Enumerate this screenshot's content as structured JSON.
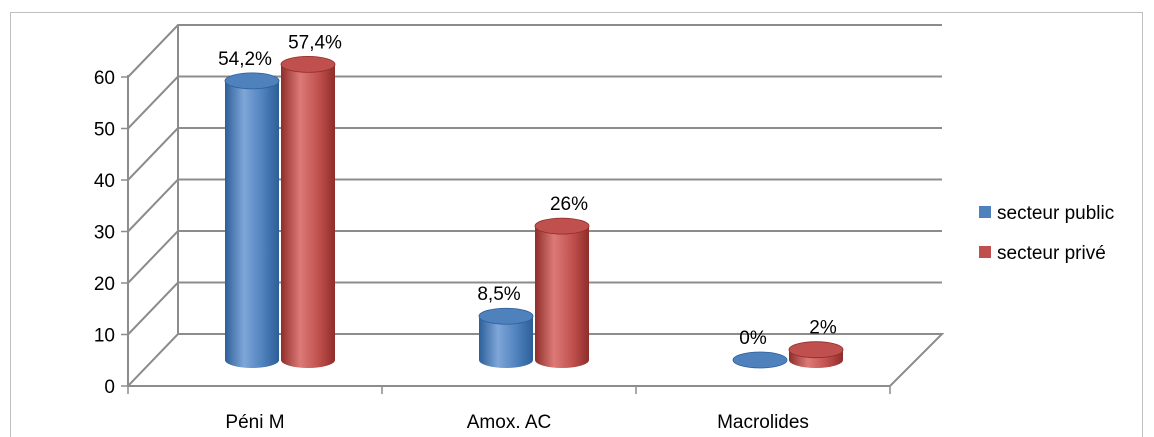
{
  "chart_data": {
    "type": "bar",
    "categories": [
      "Péni M",
      "Amox. AC",
      "Macrolides"
    ],
    "series": [
      {
        "name": "secteur public",
        "values": [
          54.2,
          8.5,
          0
        ],
        "labels": [
          "54,2%",
          "8,5%",
          "0%"
        ]
      },
      {
        "name": "secteur privé",
        "values": [
          57.4,
          26,
          2
        ],
        "labels": [
          "57,4%",
          "26%",
          "2%"
        ]
      }
    ],
    "yticks": [
      "0",
      "10",
      "20",
      "30",
      "40",
      "50",
      "60"
    ],
    "ylim": [
      0,
      60
    ],
    "grid": true,
    "legend_position": "right",
    "colors": {
      "series_0": "#4f81bd",
      "series_1": "#c0504d",
      "series_0_dark": "#2c5f99",
      "series_1_dark": "#8f2d2a",
      "series_0_light": "#7fa6d9",
      "series_1_light": "#dc7a77",
      "grid": "#8c8c8c",
      "axis": "#8c8c8c"
    }
  }
}
